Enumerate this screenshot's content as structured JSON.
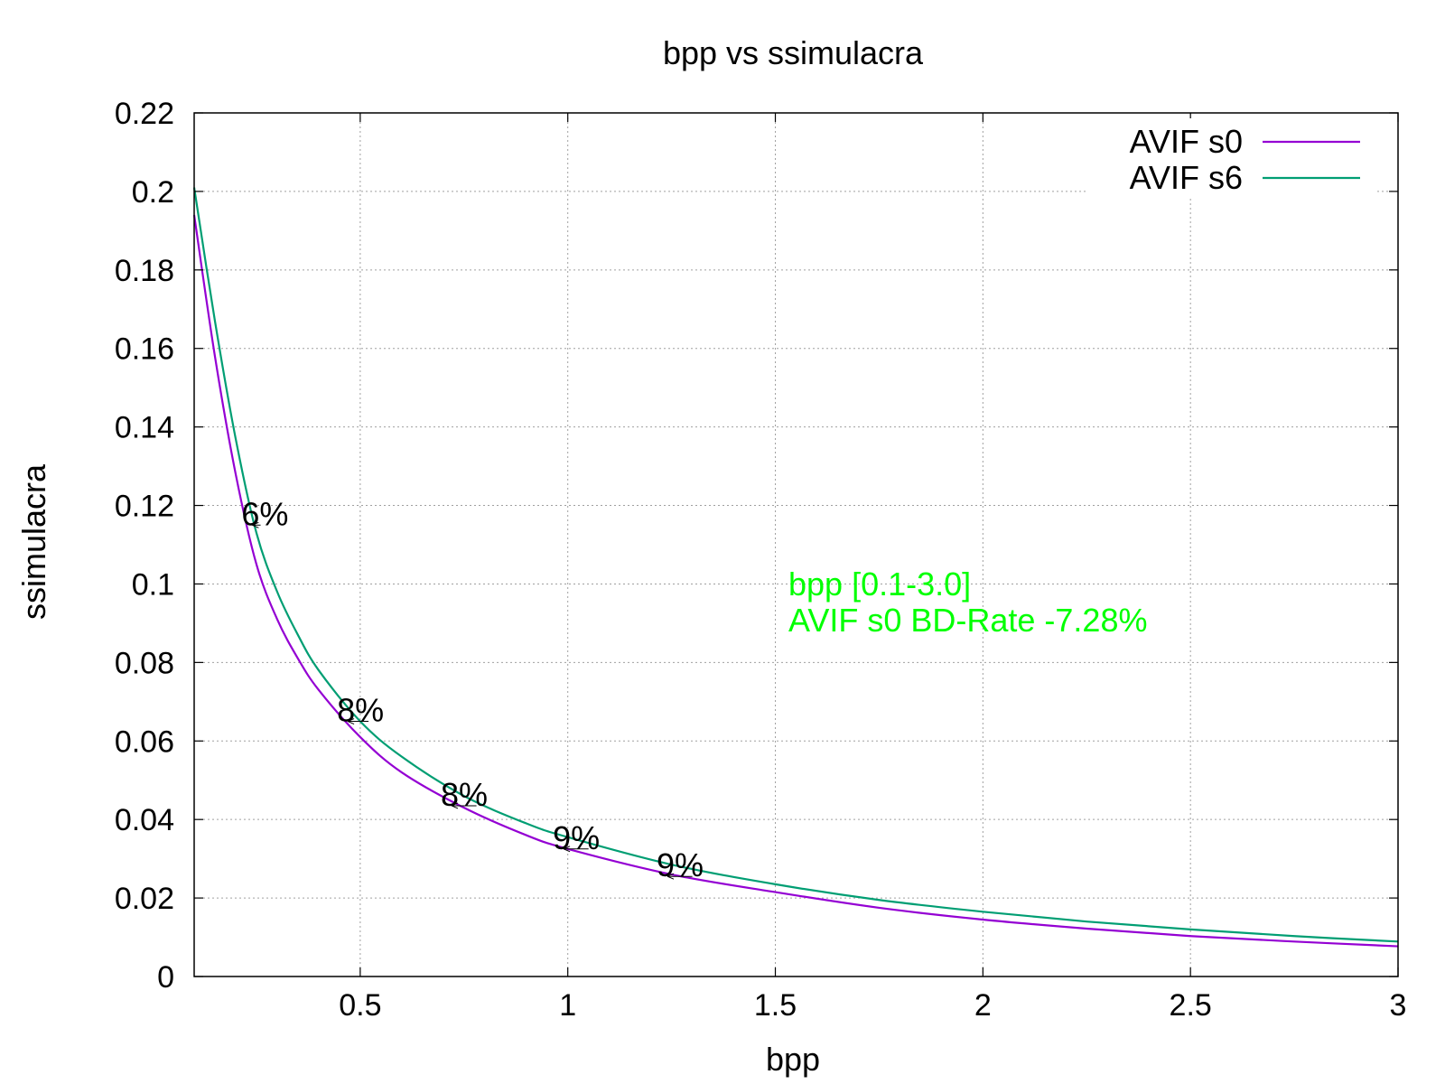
{
  "chart_data": {
    "type": "line",
    "title": "bpp vs ssimulacra",
    "xlabel": "bpp",
    "ylabel": "ssimulacra",
    "xlim": [
      0.1,
      3.0
    ],
    "ylim": [
      0,
      0.22
    ],
    "x_ticks": [
      "0.5",
      "1",
      "1.5",
      "2",
      "2.5",
      "3"
    ],
    "y_ticks": [
      "0",
      "0.02",
      "0.04",
      "0.06",
      "0.08",
      "0.1",
      "0.12",
      "0.14",
      "0.16",
      "0.18",
      "0.2",
      "0.22"
    ],
    "grid": true,
    "legend_position": "top-right",
    "series": [
      {
        "name": "AVIF s0",
        "color": "#9400d3",
        "x": [
          0.1,
          0.15,
          0.2,
          0.25,
          0.3,
          0.35,
          0.4,
          0.5,
          0.6,
          0.75,
          0.9,
          1.0,
          1.25,
          1.5,
          1.75,
          2.0,
          2.25,
          2.5,
          2.75,
          3.0
        ],
        "y": [
          0.194,
          0.158,
          0.128,
          0.105,
          0.091,
          0.081,
          0.073,
          0.061,
          0.052,
          0.043,
          0.036,
          0.0325,
          0.026,
          0.0215,
          0.0175,
          0.0145,
          0.0122,
          0.0103,
          0.0089,
          0.0077
        ]
      },
      {
        "name": "AVIF s6",
        "color": "#009e73",
        "x": [
          0.1,
          0.15,
          0.2,
          0.25,
          0.3,
          0.35,
          0.4,
          0.5,
          0.6,
          0.75,
          0.9,
          1.0,
          1.25,
          1.5,
          1.75,
          2.0,
          2.25,
          2.5,
          2.75,
          3.0
        ],
        "y": [
          0.201,
          0.167,
          0.137,
          0.113,
          0.098,
          0.087,
          0.078,
          0.065,
          0.056,
          0.046,
          0.039,
          0.0355,
          0.0285,
          0.0235,
          0.0195,
          0.0165,
          0.014,
          0.012,
          0.0103,
          0.0089
        ]
      }
    ],
    "annotations": [
      {
        "label": "6%",
        "x": 0.26,
        "y": 0.115,
        "to_x": 0.24
      },
      {
        "label": "8%",
        "x": 0.52,
        "y": 0.065,
        "to_x": 0.47
      },
      {
        "label": "8%",
        "x": 0.78,
        "y": 0.0435,
        "to_x": 0.72
      },
      {
        "label": "9%",
        "x": 1.05,
        "y": 0.0325,
        "to_x": 0.99
      },
      {
        "label": "9%",
        "x": 1.3,
        "y": 0.0255,
        "to_x": 1.24
      }
    ],
    "bd_rate_text": {
      "color": "#00ff00",
      "lines": [
        "bpp [0.1-3.0]",
        "AVIF s0 BD-Rate -7.28%"
      ]
    }
  }
}
